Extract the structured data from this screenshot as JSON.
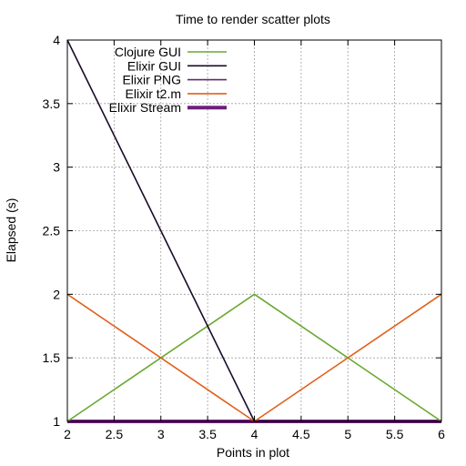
{
  "chart_data": {
    "type": "line",
    "title": "Time to render scatter plots",
    "xlabel": "Points in plot",
    "ylabel": "Elapsed (s)",
    "xlim": [
      2,
      6
    ],
    "ylim": [
      1,
      4
    ],
    "x_ticks": [
      "2",
      "2.5",
      "3",
      "3.5",
      "4",
      "4.5",
      "5",
      "5.5",
      "6"
    ],
    "y_ticks": [
      "1",
      "1.5",
      "2",
      "2.5",
      "3",
      "3.5",
      "4"
    ],
    "grid": true,
    "legend_position": "top-left",
    "series": [
      {
        "name": "Clojure GUI",
        "color": "#6aa830",
        "line_width": "normal",
        "x": [
          2,
          4,
          6
        ],
        "y": [
          1,
          2,
          1
        ]
      },
      {
        "name": "Elixir GUI",
        "color": "#1a0a2a",
        "line_width": "normal",
        "x": [
          2,
          4,
          6
        ],
        "y": [
          4,
          1,
          1
        ]
      },
      {
        "name": "Elixir PNG",
        "color": "#5b2a6e",
        "line_width": "normal",
        "x": [
          2,
          4,
          6
        ],
        "y": [
          1,
          1,
          1
        ]
      },
      {
        "name": "Elixir t2.m",
        "color": "#e0601a",
        "line_width": "normal",
        "x": [
          2,
          4,
          6
        ],
        "y": [
          2,
          1,
          2
        ]
      },
      {
        "name": "Elixir Stream",
        "color": "#6e1f7a",
        "line_width": "thick",
        "x": [
          2,
          4,
          6
        ],
        "y": [
          1,
          1,
          1
        ]
      }
    ]
  }
}
